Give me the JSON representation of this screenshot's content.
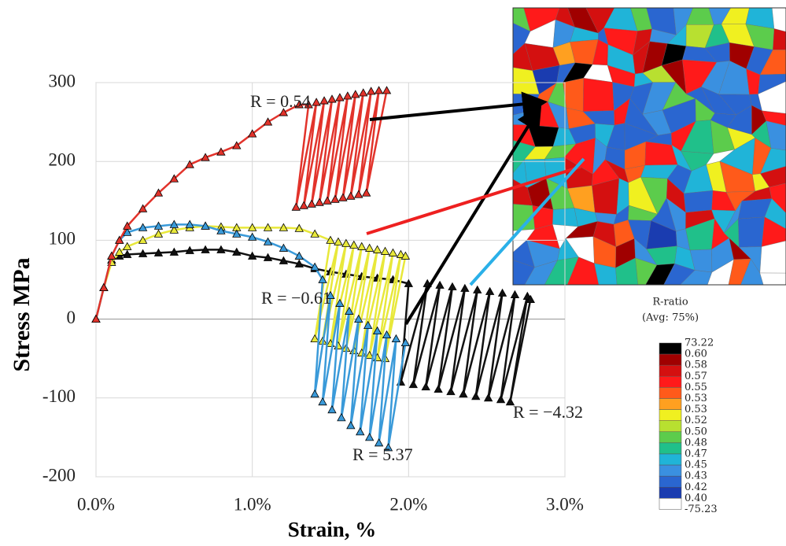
{
  "chart_data": {
    "type": "line",
    "xlabel": "Strain, %",
    "ylabel": "Stress MPa",
    "xlim": [
      0,
      3
    ],
    "ylim": [
      -200,
      300
    ],
    "xticks": [
      {
        "value": 0,
        "label": "0.0%"
      },
      {
        "value": 1,
        "label": "1.0%"
      },
      {
        "value": 2,
        "label": "2.0%"
      },
      {
        "value": 3,
        "label": "3.0%"
      }
    ],
    "yticks": [
      -200,
      -100,
      0,
      100,
      200,
      300
    ],
    "grid": true,
    "series": [
      {
        "name": "R = −4.32",
        "color": "#111111",
        "x": [
          0,
          0.05,
          0.1,
          0.15,
          0.2,
          0.3,
          0.4,
          0.5,
          0.6,
          0.7,
          0.8,
          0.9,
          1.0,
          1.1,
          1.2,
          1.3,
          1.4,
          1.5,
          1.6,
          1.7,
          1.8,
          1.9,
          2.0,
          1.95,
          2.12,
          2.03,
          2.2,
          2.11,
          2.28,
          2.19,
          2.36,
          2.27,
          2.44,
          2.35,
          2.52,
          2.43,
          2.6,
          2.51,
          2.68,
          2.59,
          2.76,
          2.65,
          2.78
        ],
        "y": [
          0,
          40,
          75,
          80,
          82,
          83,
          84,
          85,
          87,
          88,
          88,
          85,
          80,
          78,
          74,
          70,
          64,
          60,
          57,
          54,
          52,
          50,
          45,
          -80,
          45,
          -83,
          43,
          -86,
          41,
          -89,
          39,
          -92,
          37,
          -95,
          35,
          -98,
          33,
          -100,
          31,
          -102,
          29,
          -105,
          25
        ]
      },
      {
        "name": "R = −0.61",
        "color": "#e8e83a",
        "x": [
          0,
          0.05,
          0.1,
          0.15,
          0.2,
          0.3,
          0.4,
          0.5,
          0.6,
          0.7,
          0.8,
          0.9,
          1.0,
          1.1,
          1.2,
          1.3,
          1.4,
          1.5,
          1.4,
          1.55,
          1.45,
          1.6,
          1.5,
          1.65,
          1.55,
          1.7,
          1.6,
          1.75,
          1.65,
          1.8,
          1.7,
          1.85,
          1.75,
          1.9,
          1.8,
          1.95,
          1.85,
          1.98
        ],
        "y": [
          0,
          40,
          72,
          85,
          92,
          100,
          108,
          113,
          116,
          118,
          117,
          116,
          116,
          116,
          116,
          115,
          108,
          100,
          -25,
          98,
          -28,
          96,
          -31,
          94,
          -34,
          92,
          -37,
          90,
          -40,
          88,
          -43,
          86,
          -46,
          84,
          -49,
          82,
          -50,
          80
        ]
      },
      {
        "name": "R = 5.37",
        "color": "#3a9ad9",
        "x": [
          0,
          0.05,
          0.1,
          0.15,
          0.2,
          0.3,
          0.4,
          0.5,
          0.6,
          0.7,
          0.8,
          0.9,
          1.0,
          1.1,
          1.2,
          1.3,
          1.4,
          1.45,
          1.4,
          1.5,
          1.45,
          1.56,
          1.51,
          1.62,
          1.57,
          1.68,
          1.63,
          1.74,
          1.69,
          1.8,
          1.75,
          1.86,
          1.81,
          1.92,
          1.87,
          1.98
        ],
        "y": [
          0,
          40,
          80,
          100,
          110,
          116,
          118,
          120,
          120,
          118,
          112,
          108,
          104,
          98,
          90,
          80,
          66,
          50,
          -95,
          30,
          -105,
          20,
          -115,
          10,
          -125,
          0,
          -135,
          -8,
          -143,
          -15,
          -150,
          -20,
          -157,
          -25,
          -163,
          -30
        ]
      },
      {
        "name": "R = 0.54",
        "color": "#e2332b",
        "x": [
          0,
          0.05,
          0.1,
          0.15,
          0.2,
          0.3,
          0.4,
          0.5,
          0.6,
          0.7,
          0.8,
          0.9,
          1.0,
          1.1,
          1.2,
          1.3,
          1.36,
          1.28,
          1.41,
          1.33,
          1.46,
          1.38,
          1.51,
          1.43,
          1.56,
          1.48,
          1.61,
          1.53,
          1.66,
          1.58,
          1.71,
          1.63,
          1.76,
          1.68,
          1.81,
          1.73,
          1.86
        ],
        "y": [
          0,
          40,
          80,
          100,
          118,
          140,
          160,
          178,
          196,
          205,
          212,
          220,
          235,
          250,
          262,
          272,
          272,
          142,
          275,
          144,
          277,
          146,
          279,
          148,
          281,
          150,
          283,
          152,
          285,
          154,
          287,
          156,
          289,
          158,
          290,
          160,
          290
        ]
      }
    ]
  },
  "colorbar": {
    "title": "R-ratio",
    "subtitle": "(Avg: 75%)",
    "labels": [
      "73.22",
      "0.60",
      "0.58",
      "0.57",
      "0.55",
      "0.53",
      "0.53",
      "0.52",
      "0.50",
      "0.48",
      "0.47",
      "0.45",
      "0.43",
      "0.42",
      "0.40",
      "-75.23"
    ],
    "colors": [
      "#000000",
      "#a00000",
      "#d41010",
      "#ff1a1a",
      "#ff5a1a",
      "#ffa020",
      "#f0f020",
      "#b8e030",
      "#5ccc4c",
      "#20c08a",
      "#20b4d8",
      "#3a90e0",
      "#2a66d0",
      "#1a3cb0",
      "#ffffff"
    ]
  }
}
